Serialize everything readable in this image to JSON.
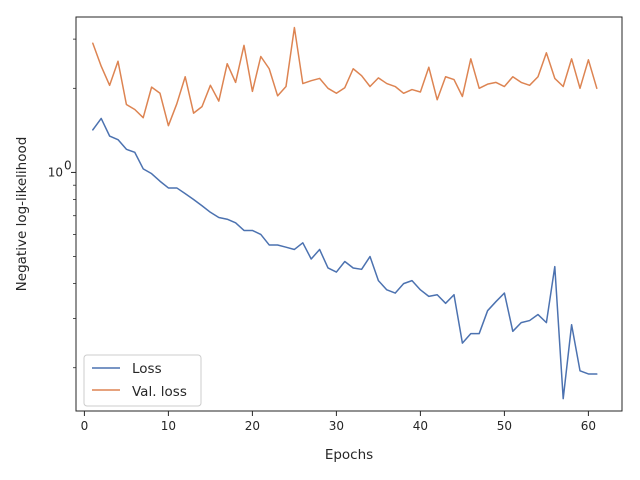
{
  "chart_data": {
    "type": "line",
    "xlabel": "Epochs",
    "ylabel": "Negative log-likelihood",
    "yscale": "log",
    "xlim": [
      -1,
      64
    ],
    "ylim": [
      0.14,
      3.6
    ],
    "xticks": [
      0,
      10,
      20,
      30,
      40,
      50,
      60
    ],
    "yticks": [
      {
        "value": 1.0,
        "label": "10",
        "exp": "0"
      }
    ],
    "legend_position": "lower-left",
    "grid": false,
    "x": [
      1,
      2,
      3,
      4,
      5,
      6,
      7,
      8,
      9,
      10,
      11,
      12,
      13,
      14,
      15,
      16,
      17,
      18,
      19,
      20,
      21,
      22,
      23,
      24,
      25,
      26,
      27,
      28,
      29,
      30,
      31,
      32,
      33,
      34,
      35,
      36,
      37,
      38,
      39,
      40,
      41,
      42,
      43,
      44,
      45,
      46,
      47,
      48,
      49,
      50,
      51,
      52,
      53,
      54,
      55,
      56,
      57,
      58,
      59,
      60,
      61
    ],
    "series": [
      {
        "name": "Loss",
        "color": "#4c72b0",
        "values": [
          1.42,
          1.56,
          1.35,
          1.31,
          1.21,
          1.18,
          1.03,
          0.99,
          0.93,
          0.88,
          0.88,
          0.84,
          0.8,
          0.76,
          0.72,
          0.69,
          0.68,
          0.66,
          0.62,
          0.62,
          0.6,
          0.55,
          0.55,
          0.54,
          0.53,
          0.56,
          0.49,
          0.53,
          0.455,
          0.44,
          0.48,
          0.455,
          0.45,
          0.5,
          0.41,
          0.38,
          0.37,
          0.4,
          0.41,
          0.38,
          0.36,
          0.365,
          0.34,
          0.365,
          0.245,
          0.265,
          0.265,
          0.32,
          0.345,
          0.37,
          0.27,
          0.29,
          0.295,
          0.31,
          0.29,
          0.46,
          0.155,
          0.285,
          0.195,
          0.19,
          0.19
        ]
      },
      {
        "name": "Val. loss",
        "color": "#dd8452",
        "values": [
          2.9,
          2.4,
          2.05,
          2.5,
          1.75,
          1.68,
          1.57,
          2.02,
          1.92,
          1.47,
          1.76,
          2.2,
          1.63,
          1.72,
          2.05,
          1.8,
          2.45,
          2.1,
          2.85,
          1.95,
          2.6,
          2.35,
          1.88,
          2.03,
          3.3,
          2.08,
          2.13,
          2.17,
          2.0,
          1.92,
          2.01,
          2.35,
          2.22,
          2.03,
          2.18,
          2.08,
          2.03,
          1.92,
          1.98,
          1.94,
          2.38,
          1.82,
          2.2,
          2.15,
          1.87,
          2.55,
          2.0,
          2.07,
          2.1,
          2.03,
          2.2,
          2.1,
          2.05,
          2.2,
          2.68,
          2.17,
          2.03,
          2.55,
          2.0,
          2.53,
          2.0
        ]
      }
    ]
  }
}
